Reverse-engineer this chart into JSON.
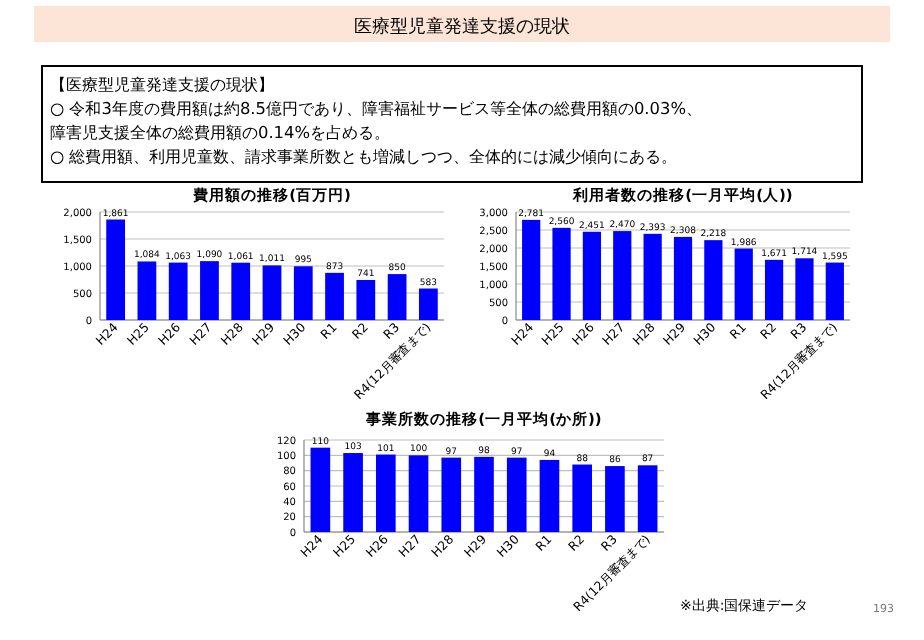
{
  "chart_data": [
    {
      "type": "bar",
      "title": "費用額の推移(百万円)",
      "categories": [
        "H24",
        "H25",
        "H26",
        "H27",
        "H28",
        "H29",
        "H30",
        "R1",
        "R2",
        "R3",
        "R4(12月審査まで)"
      ],
      "values": [
        1861,
        1084,
        1063,
        1090,
        1061,
        1011,
        995,
        873,
        741,
        850,
        583
      ],
      "value_labels": [
        "1,861",
        "1,084",
        "1,063",
        "1,090",
        "1,061",
        "1,011",
        "995",
        "873",
        "741",
        "850",
        "583"
      ],
      "color": "#0000ff",
      "ylim": [
        0,
        2000
      ],
      "yticks": [
        0,
        500,
        {
          "value": 1000,
          "label": "1,000"
        },
        {
          "value": 1500,
          "label": "1,500"
        },
        {
          "value": 2000,
          "label": "2,000"
        }
      ],
      "grid": "y",
      "annotations": [
        "医療型児童発達支援の現状",
        "【医療型児童発達支援の現状】",
        "○ 令和3年度の費用額は約8.5億円であり、障害福祉サービス等全体の総費用額の0.03%、",
        "障害児支援全体の総費用額の0.14%を占める。",
        "○ 総費用額、利用児童数、請求事業所数とも増減しつつ、全体的には減少傾向にある。"
      ]
    },
    {
      "type": "bar",
      "title": "利用者数の推移(一月平均(人))",
      "categories": [
        "H24",
        "H25",
        "H26",
        "H27",
        "H28",
        "H29",
        "H30",
        "R1",
        "R2",
        "R3",
        "R4(12月審査まで)"
      ],
      "values": [
        2781,
        2560,
        2451,
        2470,
        2393,
        2308,
        2218,
        1986,
        1671,
        1714,
        1595
      ],
      "value_labels": [
        "2,781",
        "2,560",
        "2,451",
        "2,470",
        "2,393",
        "2,308",
        "2,218",
        "1,986",
        "1,671",
        "1,714",
        "1,595"
      ],
      "color": "#0000ff",
      "ylim": [
        0,
        3000
      ],
      "yticks": [
        0,
        500,
        {
          "value": 1000,
          "label": "1,000"
        },
        {
          "value": 1500,
          "label": "1,500"
        },
        {
          "value": 2000,
          "label": "2,000"
        },
        {
          "value": 2500,
          "label": "2,500"
        },
        {
          "value": 3000,
          "label": "3,000"
        }
      ],
      "grid": "y"
    },
    {
      "type": "bar",
      "title": "事業所数の推移(一月平均(か所))",
      "categories": [
        "H24",
        "H25",
        "H26",
        "H27",
        "H28",
        "H29",
        "H30",
        "R1",
        "R2",
        "R3",
        "R4(12月審査まで)"
      ],
      "values": [
        110,
        103,
        101,
        100,
        97,
        98,
        97,
        94,
        88,
        86,
        87
      ],
      "color": "#0000ff",
      "ylim": [
        0,
        120
      ],
      "yticks": [
        0,
        20,
        40,
        60,
        80,
        100,
        120
      ],
      "grid": "y",
      "data_labels": true,
      "annotations": [
        "※出典:国保連データ",
        "193"
      ]
    }
  ]
}
